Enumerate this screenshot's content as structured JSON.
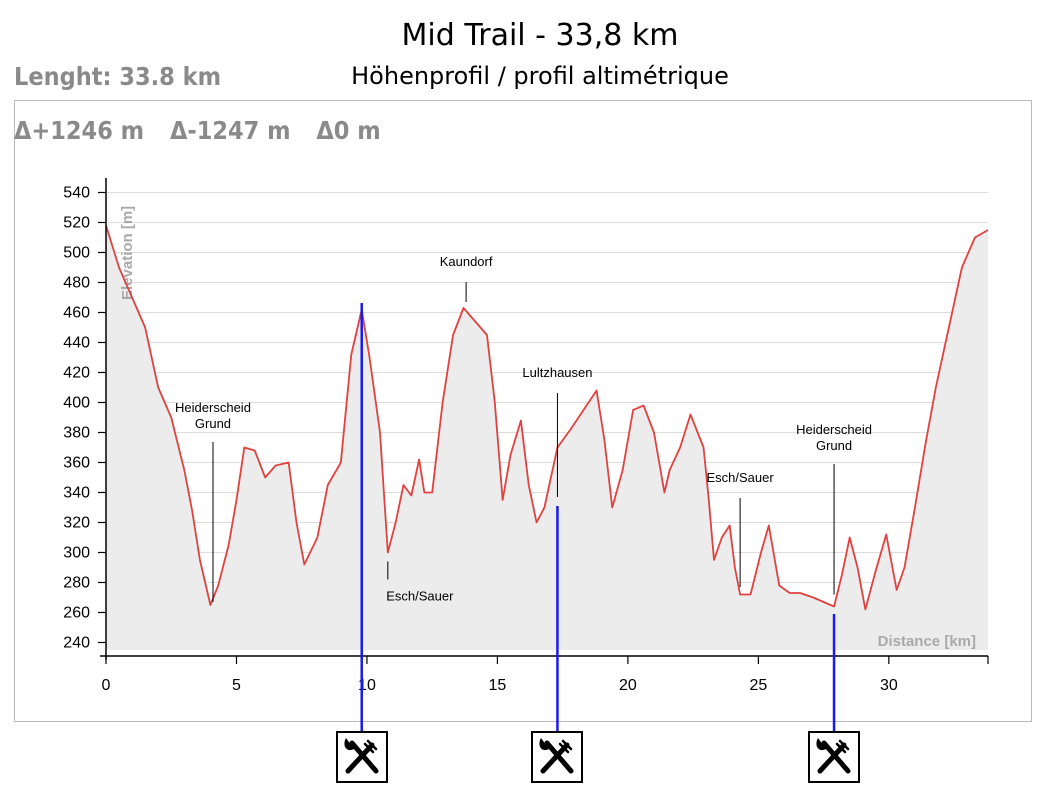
{
  "header": {
    "title": "Mid Trail - 33,8 km",
    "subtitle": "Höhenprofil / profil altimétrique"
  },
  "stats": {
    "length": "Lenght: 33.8 km",
    "ascent": "Δ+1246 m",
    "descent": "Δ-1247 m",
    "net": "Δ0 m"
  },
  "chart_data": {
    "type": "area",
    "xlabel": "Distance [km]",
    "ylabel": "Elevation [m]",
    "xlim": [
      0,
      33.8
    ],
    "ylim": [
      235,
      545
    ],
    "xticks": [
      0,
      5,
      10,
      15,
      20,
      25,
      30
    ],
    "yticks": [
      240,
      260,
      280,
      300,
      320,
      340,
      360,
      380,
      400,
      420,
      440,
      460,
      480,
      500,
      520,
      540
    ],
    "grid": true,
    "line_color": "#e0423f",
    "fill_color": "#ececec",
    "series": [
      {
        "x": [
          0,
          0.5,
          1,
          1.5,
          2,
          2.5,
          3,
          3.3,
          3.6,
          4.0,
          4.3,
          4.7,
          5.0,
          5.3,
          5.7,
          6.1,
          6.5,
          7.0,
          7.3,
          7.6,
          8.1,
          8.5,
          9.0,
          9.4,
          9.8,
          10.1,
          10.5,
          10.8,
          11.1,
          11.4,
          11.7,
          12.0,
          12.2,
          12.5,
          12.9,
          13.3,
          13.7,
          14.1,
          14.6,
          14.9,
          15.2,
          15.5,
          15.9,
          16.2,
          16.5,
          16.8,
          17.3,
          17.8,
          18.3,
          18.8,
          19.1,
          19.4,
          19.8,
          20.2,
          20.6,
          21.0,
          21.4,
          21.6,
          22.0,
          22.4,
          22.9,
          23.1,
          23.3,
          23.6,
          23.9,
          24.1,
          24.3,
          24.7,
          25.1,
          25.4,
          25.8,
          26.2,
          26.6,
          27.1,
          27.5,
          27.9,
          28.2,
          28.5,
          28.8,
          29.1,
          29.5,
          29.9,
          30.3,
          30.6,
          31.0,
          31.4,
          31.8,
          32.3,
          32.8,
          33.3,
          33.8
        ],
        "y": [
          518,
          490,
          470,
          450,
          410,
          390,
          355,
          328,
          295,
          265,
          278,
          305,
          335,
          370,
          368,
          350,
          358,
          360,
          320,
          292,
          310,
          345,
          360,
          432,
          462,
          430,
          380,
          300,
          320,
          345,
          338,
          362,
          340,
          340,
          400,
          445,
          463,
          455,
          445,
          400,
          335,
          365,
          388,
          345,
          320,
          330,
          370,
          382,
          395,
          408,
          375,
          330,
          355,
          395,
          398,
          380,
          340,
          355,
          370,
          392,
          370,
          335,
          295,
          310,
          318,
          290,
          272,
          272,
          300,
          318,
          278,
          273,
          273,
          270,
          267,
          264,
          285,
          310,
          290,
          262,
          288,
          312,
          275,
          290,
          330,
          372,
          410,
          450,
          490,
          510,
          515
        ]
      }
    ],
    "annotations": [
      {
        "label": "Heiderscheid Grund",
        "x": 4.1,
        "y": 263
      },
      {
        "label": "Esch/Sauer",
        "x": 10.8,
        "y": 298
      },
      {
        "label": "Kaundorf",
        "x": 13.8,
        "y": 463
      },
      {
        "label": "Lultzhausen",
        "x": 17.3,
        "y": 333
      },
      {
        "label": "Esch/Sauer",
        "x": 24.3,
        "y": 273
      },
      {
        "label": "Heiderscheid Grund",
        "x": 27.9,
        "y": 268
      }
    ],
    "food_stations_km": [
      9.8,
      17.3,
      27.9
    ]
  },
  "icons": {
    "food_station": "fork-and-knife-icon"
  }
}
